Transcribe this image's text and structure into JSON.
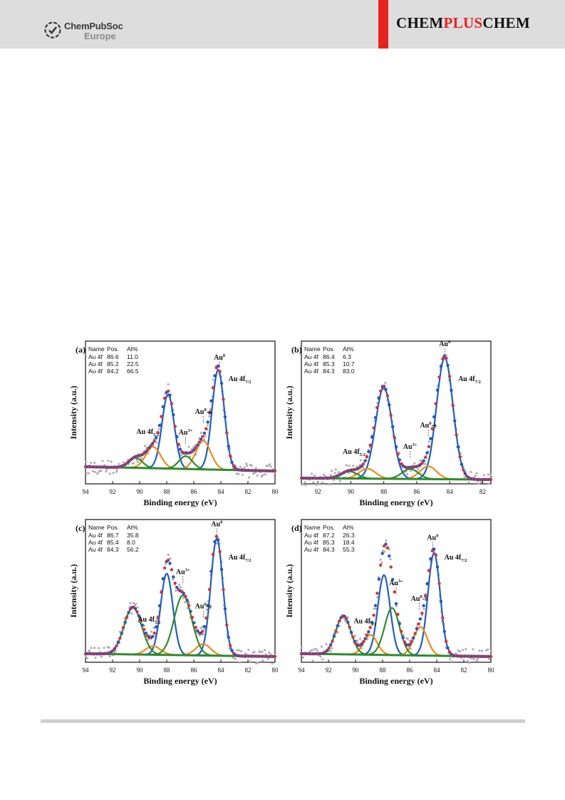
{
  "header": {
    "publisher_name": "ChemPubSoc",
    "publisher_region": "Europe",
    "journal_part1": "CHEM",
    "journal_part2": "PLUS",
    "journal_part3": "CHEM",
    "accent_color": "#e8231f"
  },
  "chart_data": [
    {
      "panel": "(a)",
      "type": "line",
      "xlabel": "Binding energy (eV)",
      "ylabel": "Intensity (a.u.)",
      "xlim": [
        94,
        80
      ],
      "ylim": [
        0,
        1.0
      ],
      "xticks": [
        "94",
        "92",
        "90",
        "88",
        "86",
        "84",
        "82",
        "80"
      ],
      "table": {
        "headers": [
          "Name",
          "Pos.",
          "At%"
        ],
        "rows": [
          [
            "Au 4f",
            "86.6",
            "11.0"
          ],
          [
            "Au 4f",
            "85.2",
            "22.5"
          ],
          [
            "Au 4f",
            "84.2",
            "66.5"
          ]
        ]
      },
      "annotations": [
        {
          "base": "Au",
          "sup": "0",
          "x": 84.1,
          "peak": true
        },
        {
          "base": "Au",
          "sup": "0",
          "suffix": "-s",
          "x": 85.3
        },
        {
          "base": "Au",
          "sup": "3+",
          "x": 86.6
        },
        {
          "base": "Au 4f",
          "sub": "5/2",
          "x": 89.4
        },
        {
          "base": "Au 4f",
          "sub": "7/2",
          "x": 82.6
        }
      ],
      "background": {
        "left": 0.12,
        "right": 0.09
      },
      "peaks": [
        {
          "name": "Au0 4f7/2",
          "center": 84.2,
          "height": 0.7,
          "width": 0.45,
          "color": "#1f5fbf"
        },
        {
          "name": "Au0 4f5/2",
          "center": 87.9,
          "height": 0.52,
          "width": 0.45,
          "color": "#1f5fbf"
        },
        {
          "name": "Au0-s 4f7/2",
          "center": 85.3,
          "height": 0.2,
          "width": 0.55,
          "color": "#f08a1c"
        },
        {
          "name": "Au0-s 4f5/2",
          "center": 89.0,
          "height": 0.15,
          "width": 0.55,
          "color": "#f08a1c"
        },
        {
          "name": "Au3+ 4f7/2",
          "center": 86.6,
          "height": 0.09,
          "width": 0.5,
          "color": "#2e8b2e"
        },
        {
          "name": "Au3+ 4f5/2",
          "center": 90.3,
          "height": 0.07,
          "width": 0.5,
          "color": "#2e8b2e"
        }
      ],
      "envelope_color": "#e03030",
      "background_color": "#2e8b2e",
      "raw_color": "#b0b0b0"
    },
    {
      "panel": "(b)",
      "type": "line",
      "xlabel": "Binding energy (eV)",
      "ylabel": "Intensity (a.u.)",
      "xlim": [
        93,
        81.5
      ],
      "ylim": [
        0,
        1.0
      ],
      "xticks": [
        "92",
        "90",
        "88",
        "86",
        "84",
        "82"
      ],
      "table": {
        "headers": [
          "Name",
          "Pos.",
          "At%"
        ],
        "rows": [
          [
            "Au 4f",
            "86.4",
            "6.3"
          ],
          [
            "Au 4f",
            "85.3",
            "10.7"
          ],
          [
            "Au 4f",
            "84.3",
            "83.0"
          ]
        ]
      },
      "annotations": [
        {
          "base": "Au",
          "sup": "0",
          "x": 84.3,
          "peak": true
        },
        {
          "base": "Au",
          "sup": "0",
          "suffix": "-s",
          "x": 85.3
        },
        {
          "base": "Au",
          "sup": "3+",
          "x": 86.4
        },
        {
          "base": "Au 4f",
          "sub": "5/2",
          "x": 89.8
        },
        {
          "base": "Au 4f",
          "sub": "7/2",
          "x": 82.8
        }
      ],
      "background": {
        "left": 0.04,
        "right": 0.03
      },
      "peaks": [
        {
          "name": "Au0 4f7/2",
          "center": 84.3,
          "height": 0.85,
          "width": 0.5,
          "color": "#1f5fbf"
        },
        {
          "name": "Au0 4f5/2",
          "center": 88.0,
          "height": 0.64,
          "width": 0.5,
          "color": "#1f5fbf"
        },
        {
          "name": "Au0-s 4f7/2",
          "center": 85.3,
          "height": 0.09,
          "width": 0.5,
          "color": "#f08a1c"
        },
        {
          "name": "Au0-s 4f5/2",
          "center": 89.0,
          "height": 0.07,
          "width": 0.5,
          "color": "#f08a1c"
        },
        {
          "name": "Au3+ 4f7/2",
          "center": 86.4,
          "height": 0.07,
          "width": 0.5,
          "color": "#2e8b2e"
        },
        {
          "name": "Au3+ 4f5/2",
          "center": 90.1,
          "height": 0.05,
          "width": 0.5,
          "color": "#2e8b2e"
        }
      ],
      "envelope_color": "#e03030",
      "background_color": "#2e8b2e",
      "raw_color": "#b0b0b0"
    },
    {
      "panel": "(c)",
      "type": "line",
      "xlabel": "Binding energy (eV)",
      "ylabel": "Intensity (a.u.)",
      "xlim": [
        94,
        80
      ],
      "ylim": [
        0,
        1.0
      ],
      "xticks": [
        "94",
        "92",
        "90",
        "88",
        "86",
        "84",
        "82",
        "80"
      ],
      "table": {
        "headers": [
          "Name",
          "Pos.",
          "At%"
        ],
        "rows": [
          [
            "Au 4f",
            "86.7",
            "35.8"
          ],
          [
            "Au 4f",
            "85.4",
            "8.0"
          ],
          [
            "Au 4f",
            "84.3",
            "56.2"
          ]
        ]
      },
      "annotations": [
        {
          "base": "Au",
          "sup": "0",
          "x": 84.3,
          "peak": true
        },
        {
          "base": "Au",
          "sup": "0",
          "suffix": "-s",
          "x": 85.3
        },
        {
          "base": "Au",
          "sup": "3+",
          "x": 86.8
        },
        {
          "base": "Au 4f",
          "sub": "5/2",
          "x": 89.3
        },
        {
          "base": "Au 4f",
          "sub": "7/2",
          "x": 82.6
        }
      ],
      "background": {
        "left": 0.06,
        "right": 0.04
      },
      "peaks": [
        {
          "name": "Au0 4f7/2",
          "center": 84.3,
          "height": 0.82,
          "width": 0.45,
          "color": "#1f5fbf"
        },
        {
          "name": "Au0 4f5/2",
          "center": 88.0,
          "height": 0.57,
          "width": 0.45,
          "color": "#1f5fbf"
        },
        {
          "name": "Au0-s 4f7/2",
          "center": 85.3,
          "height": 0.08,
          "width": 0.55,
          "color": "#f08a1c"
        },
        {
          "name": "Au0-s 4f5/2",
          "center": 89.0,
          "height": 0.06,
          "width": 0.55,
          "color": "#f08a1c"
        },
        {
          "name": "Au3+ 4f7/2",
          "center": 86.8,
          "height": 0.42,
          "width": 0.65,
          "color": "#2e8b2e"
        },
        {
          "name": "Au3+ 4f5/2",
          "center": 90.5,
          "height": 0.33,
          "width": 0.65,
          "color": "#2e8b2e"
        }
      ],
      "envelope_color": "#e03030",
      "background_color": "#2e8b2e",
      "raw_color": "#b0b0b0"
    },
    {
      "panel": "(d)",
      "type": "line",
      "xlabel": "Binding energy (eV)",
      "ylabel": "Intensity (a.u.)",
      "xlim": [
        94,
        80
      ],
      "ylim": [
        0,
        1.0
      ],
      "xticks": [
        "94",
        "92",
        "90",
        "88",
        "86",
        "84",
        "82",
        "80"
      ],
      "table": {
        "headers": [
          "Name",
          "Pos.",
          "At%"
        ],
        "rows": [
          [
            "Au 4f",
            "87.2",
            "26.3"
          ],
          [
            "Au 4f",
            "85.3",
            "18.4"
          ],
          [
            "Au 4f",
            "84.3",
            "55.3"
          ]
        ]
      },
      "annotations": [
        {
          "base": "Au",
          "sup": "0",
          "x": 84.3,
          "peak": true
        },
        {
          "base": "Au",
          "sup": "0",
          "suffix": "-s",
          "x": 85.3
        },
        {
          "base": "Au",
          "sup": "3+",
          "x": 87.0
        },
        {
          "base": "Au 4f",
          "sub": "5/2",
          "x": 89.3
        },
        {
          "base": "Au 4f",
          "sub": "7/2",
          "x": 82.6
        }
      ],
      "background": {
        "left": 0.06,
        "right": 0.04
      },
      "peaks": [
        {
          "name": "Au0 4f7/2",
          "center": 84.2,
          "height": 0.72,
          "width": 0.45,
          "color": "#1f5fbf"
        },
        {
          "name": "Au0 4f5/2",
          "center": 87.9,
          "height": 0.56,
          "width": 0.45,
          "color": "#1f5fbf"
        },
        {
          "name": "Au0-s 4f7/2",
          "center": 85.2,
          "height": 0.2,
          "width": 0.5,
          "color": "#f08a1c"
        },
        {
          "name": "Au0-s 4f5/2",
          "center": 88.9,
          "height": 0.14,
          "width": 0.5,
          "color": "#f08a1c"
        },
        {
          "name": "Au3+ 4f7/2",
          "center": 87.3,
          "height": 0.33,
          "width": 0.55,
          "color": "#2e8b2e"
        },
        {
          "name": "Au3+ 4f5/2",
          "center": 90.9,
          "height": 0.27,
          "width": 0.55,
          "color": "#2e8b2e"
        }
      ],
      "envelope_color": "#e03030",
      "background_color": "#2e8b2e",
      "raw_color": "#b0b0b0"
    }
  ]
}
